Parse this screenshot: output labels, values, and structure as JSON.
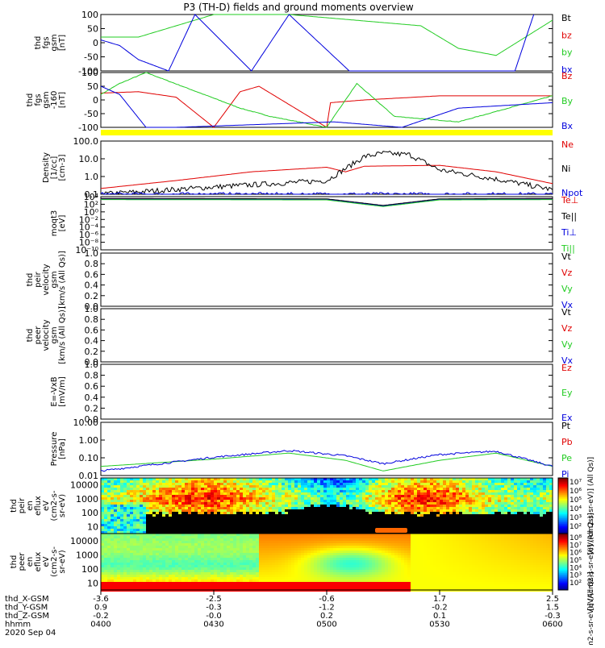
{
  "title": "P3 (TH-D) fields and ground moments overview",
  "colors": {
    "black": "#000000",
    "red": "#e00000",
    "green": "#22cc22",
    "blue": "#0000dd",
    "yellow": "#ffff00"
  },
  "panels": [
    {
      "id": "fgs",
      "ylabel": [
        "thd",
        "fgs",
        "gsm",
        "[nT]"
      ],
      "ticks": [
        "100",
        "50",
        "0",
        "-50",
        "-100"
      ],
      "legend": [
        {
          "text": "Bt",
          "color": "#000000"
        },
        {
          "text": "bz",
          "color": "#e00000"
        },
        {
          "text": "by",
          "color": "#22cc22"
        },
        {
          "text": "bx",
          "color": "#0000dd"
        }
      ]
    },
    {
      "id": "fgs-filtered",
      "ylabel": [
        "thd",
        "fgs",
        "gsm",
        "-160",
        "[nT]"
      ],
      "ticks": [
        "100",
        "50",
        "0",
        "-50",
        "-100"
      ],
      "legend": [
        {
          "text": "Bz",
          "color": "#e00000"
        },
        {
          "text": "By",
          "color": "#22cc22"
        },
        {
          "text": "Bx",
          "color": "#0000dd"
        }
      ]
    },
    {
      "id": "density",
      "ylabel": [
        "Density",
        "[1/cc]",
        "[cm-3]"
      ],
      "ticks": [
        "100.0",
        "10.0",
        "1.0",
        "0.1"
      ],
      "legend": [
        {
          "text": "Ne",
          "color": "#e00000"
        },
        {
          "text": "Ni",
          "color": "#000000"
        },
        {
          "text": "Npot",
          "color": "#0000dd"
        }
      ]
    },
    {
      "id": "temperature",
      "ylabel": [
        "moqt3",
        "[eV]"
      ],
      "ticks": [
        "10⁴",
        "10²",
        "10⁰",
        "10⁻²",
        "10⁻⁴",
        "10⁻⁶",
        "10⁻⁸",
        "10⁻¹⁰"
      ],
      "legend": [
        {
          "text": "Te⊥",
          "color": "#e00000"
        },
        {
          "text": "Te||",
          "color": "#000000"
        },
        {
          "text": "Ti⊥",
          "color": "#0000dd"
        },
        {
          "text": "Ti||",
          "color": "#22cc22"
        }
      ]
    },
    {
      "id": "peir-velocity",
      "ylabel": [
        "thd",
        "peir",
        "velocity",
        "gsm",
        "[km/s (All Qs)]"
      ],
      "ticks": [
        "1.0",
        "0.8",
        "0.6",
        "0.4",
        "0.2",
        "0.0"
      ],
      "legend": [
        {
          "text": "Vt",
          "color": "#000000"
        },
        {
          "text": "Vz",
          "color": "#e00000"
        },
        {
          "text": "Vy",
          "color": "#22cc22"
        },
        {
          "text": "Vx",
          "color": "#0000dd"
        }
      ]
    },
    {
      "id": "peer-velocity",
      "ylabel": [
        "thd",
        "peer",
        "velocity",
        "gsm",
        "[km/s (All Qs)]"
      ],
      "ticks": [
        "1.0",
        "0.8",
        "0.6",
        "0.4",
        "0.2",
        "0.0"
      ],
      "legend": [
        {
          "text": "Vt",
          "color": "#000000"
        },
        {
          "text": "Vz",
          "color": "#e00000"
        },
        {
          "text": "Vy",
          "color": "#22cc22"
        },
        {
          "text": "Vx",
          "color": "#0000dd"
        }
      ]
    },
    {
      "id": "efield",
      "ylabel": [
        "E=-VxB",
        "[mV/m]"
      ],
      "ticks": [
        "1.0",
        "0.8",
        "0.6",
        "0.4",
        "0.2",
        "0.0"
      ],
      "legend": [
        {
          "text": "Ez",
          "color": "#e00000"
        },
        {
          "text": "Ey",
          "color": "#22cc22"
        },
        {
          "text": "Ex",
          "color": "#0000dd"
        }
      ]
    },
    {
      "id": "pressure",
      "ylabel": [
        "Pressure",
        "[nPa]"
      ],
      "ticks": [
        "10.00",
        "1.00",
        "0.10",
        "0.01"
      ],
      "legend": [
        {
          "text": "Pt",
          "color": "#000000"
        },
        {
          "text": "Pb",
          "color": "#e00000"
        },
        {
          "text": "Pe",
          "color": "#22cc22"
        },
        {
          "text": "Pi",
          "color": "#0000dd"
        }
      ]
    },
    {
      "id": "peir-spectrogram",
      "ylabel": [
        "thd",
        "peir",
        "en",
        "eflux",
        "eV",
        "(cm2-s-",
        "sr-eV)"
      ],
      "ticks": [
        "10000",
        "1000",
        "100",
        "10"
      ],
      "legend": []
    },
    {
      "id": "peer-spectrogram",
      "ylabel": [
        "thd",
        "peer",
        "en",
        "eflux",
        "eV",
        "(cm2-s-",
        "sr-eV)"
      ],
      "ticks": [
        "10000",
        "1000",
        "100",
        "10"
      ],
      "legend": []
    }
  ],
  "colorbars": [
    {
      "ticks": [
        "10⁷",
        "10⁶",
        "10⁵",
        "10⁴",
        "10³",
        "10²"
      ],
      "label": "[eV/(cm2-s-sr-eV)] (All Qs)]"
    },
    {
      "ticks": [
        "10⁸",
        "10⁷",
        "10⁶",
        "10⁵",
        "10⁴",
        "10³",
        "10²"
      ],
      "label": "[eV/(cm2-s-sr-eV)] (All Qs)]"
    }
  ],
  "ephemeris": {
    "rows": [
      {
        "label": "thd_X-GSM",
        "values": [
          "-3.6",
          "-2.5",
          "-0.6",
          "1.7",
          "2.5"
        ]
      },
      {
        "label": "thd_Y-GSM",
        "values": [
          "0.9",
          "-0.3",
          "-1.2",
          "-0.2",
          "1.5"
        ]
      },
      {
        "label": "thd_Z-GSM",
        "values": [
          "-0.2",
          "-0.0",
          "0.2",
          "0.1",
          "-0.3"
        ]
      },
      {
        "label": "hhmm",
        "values": [
          "0400",
          "0430",
          "0500",
          "0530",
          "0600"
        ]
      }
    ],
    "date": "2020 Sep 04",
    "bottom_label": "[eV/(cm2-s-sr-eV)] (All Qs)]"
  },
  "chart_data": {
    "type": "line",
    "title": "P3 (TH-D) fields and ground moments overview",
    "x": [
      "0400",
      "0430",
      "0500",
      "0530",
      "0600"
    ],
    "xlim": [
      "0400",
      "0600"
    ],
    "series": [
      {
        "name": "by",
        "panel": "fgs",
        "x": [
          "0400",
          "0410",
          "0420",
          "0430",
          "0450",
          "0525",
          "0535",
          "0545",
          "0600"
        ],
        "values": [
          20,
          20,
          60,
          100,
          100,
          60,
          -20,
          -45,
          80
        ]
      },
      {
        "name": "bx",
        "panel": "fgs",
        "x": [
          "0400",
          "0405",
          "0410",
          "0418",
          "0425",
          "0440",
          "0450",
          "0506",
          "0550",
          "0555"
        ],
        "values": [
          10,
          -10,
          -60,
          -100,
          100,
          -100,
          100,
          -100,
          -100,
          100
        ]
      },
      {
        "name": "Bz",
        "panel": "fgs-filtered",
        "x": [
          "0400",
          "0410",
          "0420",
          "0430",
          "0437",
          "0442",
          "0500",
          "0501",
          "0510",
          "0530",
          "0600"
        ],
        "values": [
          25,
          30,
          10,
          -100,
          30,
          50,
          -100,
          -10,
          0,
          15,
          15
        ]
      },
      {
        "name": "By",
        "panel": "fgs-filtered",
        "x": [
          "0400",
          "0405",
          "0412",
          "0437",
          "0445",
          "0500",
          "0508",
          "0518",
          "0535",
          "0600"
        ],
        "values": [
          20,
          60,
          100,
          -30,
          -60,
          -100,
          60,
          -60,
          -80,
          15
        ]
      },
      {
        "name": "Bx",
        "panel": "fgs-filtered",
        "x": [
          "0400",
          "0405",
          "0412",
          "0420",
          "0502",
          "0520",
          "0535",
          "0600"
        ],
        "values": [
          50,
          20,
          -100,
          -100,
          -80,
          -100,
          -30,
          -10
        ]
      },
      {
        "name": "Ne",
        "panel": "density",
        "x": [
          "0400",
          "0420",
          "0440",
          "0500",
          "0505",
          "0510",
          "0530",
          "0545",
          "0600"
        ],
        "values": [
          0.12,
          0.4,
          1.5,
          3.0,
          1.5,
          3.5,
          4.0,
          1.5,
          0.25
        ]
      },
      {
        "name": "Ni",
        "panel": "density",
        "x": [
          "0400",
          "0430",
          "0500",
          "0510",
          "0515",
          "0522",
          "0530",
          "0545",
          "0600"
        ],
        "values": [
          0.05,
          0.15,
          0.4,
          15,
          25,
          20,
          2.0,
          0.5,
          0.1
        ]
      },
      {
        "name": "Npot",
        "panel": "density",
        "x": [
          "0400",
          "0600"
        ],
        "values": [
          0.05,
          0.05
        ]
      },
      {
        "name": "Te⊥",
        "panel": "temperature",
        "x": [
          "0400",
          "0500",
          "0515",
          "0530",
          "0600"
        ],
        "values": [
          4000,
          3000,
          50,
          3000,
          4000
        ]
      },
      {
        "name": "Te||",
        "panel": "temperature",
        "x": [
          "0400",
          "0500",
          "0515",
          "0530",
          "0600"
        ],
        "values": [
          5000,
          4000,
          60,
          4000,
          5000
        ]
      },
      {
        "name": "Ti⊥",
        "panel": "temperature",
        "x": [
          "0400",
          "0500",
          "0515",
          "0530",
          "0600"
        ],
        "values": [
          3000,
          2500,
          40,
          2500,
          3000
        ]
      },
      {
        "name": "Ti||",
        "panel": "temperature",
        "x": [
          "0400",
          "0500",
          "0515",
          "0530",
          "0600"
        ],
        "values": [
          2500,
          2000,
          30,
          2000,
          2500
        ]
      },
      {
        "name": "Pe",
        "panel": "pressure",
        "x": [
          "0400",
          "0430",
          "0450",
          "0505",
          "0515",
          "0530",
          "0545",
          "0600"
        ],
        "values": [
          0.02,
          0.06,
          0.15,
          0.05,
          0.01,
          0.05,
          0.15,
          0.02
        ]
      },
      {
        "name": "Pi",
        "panel": "pressure",
        "x": [
          "0400",
          "0430",
          "0450",
          "0505",
          "0515",
          "0530",
          "0545",
          "0600"
        ],
        "values": [
          0.01,
          0.08,
          0.22,
          0.1,
          0.03,
          0.12,
          0.2,
          0.02
        ]
      }
    ]
  }
}
